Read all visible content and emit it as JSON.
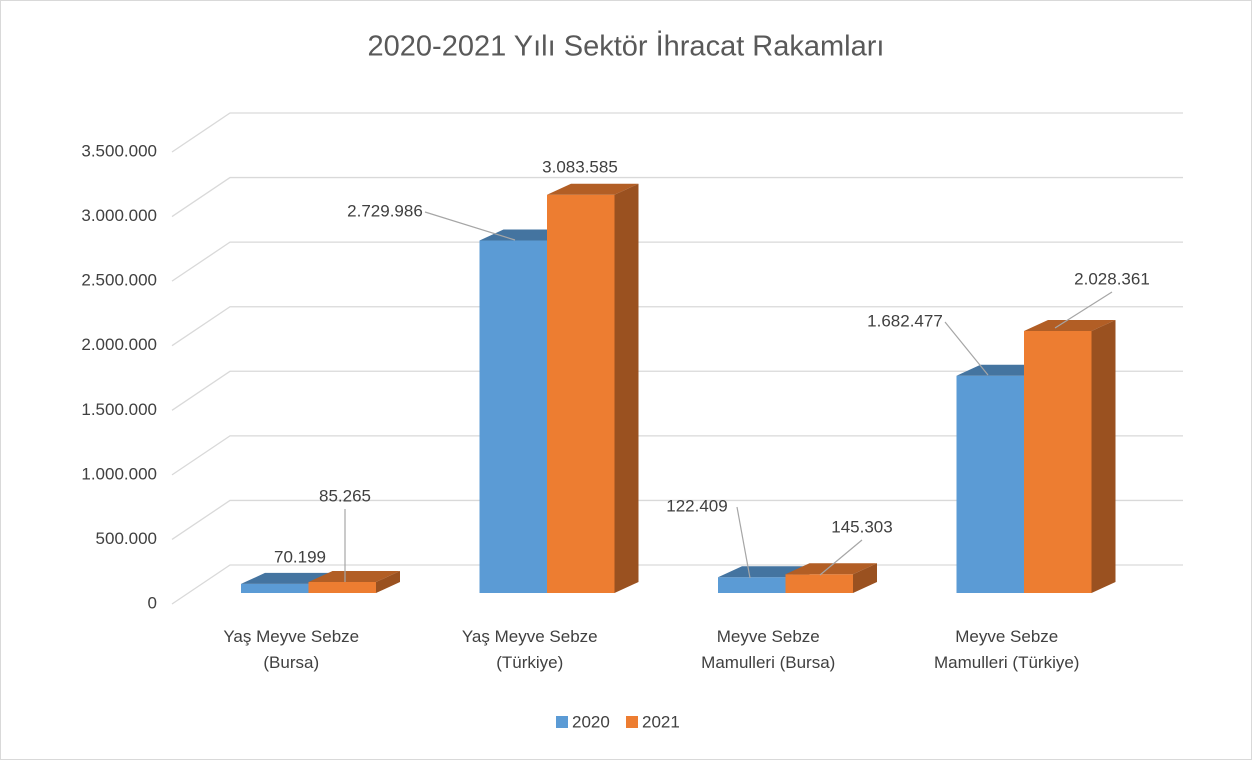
{
  "chart_data": {
    "type": "bar3d",
    "title": "2020-2021 Yılı Sektör İhracat Rakamları",
    "categories": [
      "Yaş Meyve Sebze (Bursa)",
      "Yaş Meyve Sebze (Türkiye)",
      "Meyve Sebze Mamulleri (Bursa)",
      "Meyve Sebze Mamulleri (Türkiye)"
    ],
    "series": [
      {
        "name": "2020",
        "color": "#5b9bd5",
        "values": [
          70199,
          2729986,
          122409,
          1682477
        ],
        "value_labels": [
          "70.199",
          "2.729.986",
          "122.409",
          "1.682.477"
        ]
      },
      {
        "name": "2021",
        "color": "#ed7d31",
        "values": [
          85265,
          3083585,
          145303,
          2028361
        ],
        "value_labels": [
          "85.265",
          "3.083.585",
          "145.303",
          "2.028.361"
        ]
      }
    ],
    "ylim": [
      0,
      3500000
    ],
    "yticks": [
      0,
      {
        "value": 500000,
        "label": "500.000"
      },
      {
        "value": 1000000,
        "label": "1.000.000"
      },
      {
        "value": 1500000,
        "label": "1.500.000"
      },
      {
        "value": 2000000,
        "label": "2.000.000"
      },
      {
        "value": 2500000,
        "label": "2.500.000"
      },
      {
        "value": 3000000,
        "label": "3.000.000"
      },
      {
        "value": 3500000,
        "label": "3.500.000"
      }
    ],
    "grid": true,
    "legend": "bottom"
  }
}
